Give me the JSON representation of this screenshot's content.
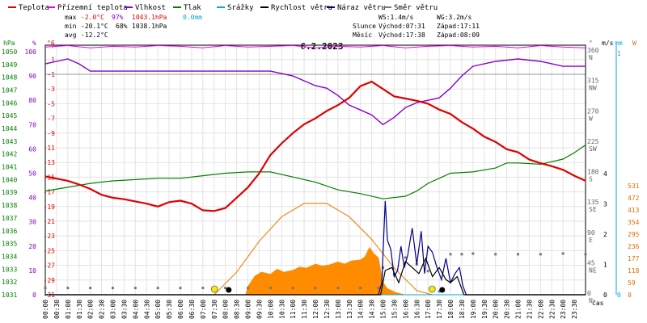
{
  "chart_data": {
    "type": "line",
    "title": "6.2.2023",
    "x_unit_label": "čas",
    "legend": [
      {
        "label": "Teplota",
        "color": "#e00000"
      },
      {
        "label": "Přízemní teplota",
        "color": "#ee00ee"
      },
      {
        "label": "Vlhkost",
        "color": "#8800cc"
      },
      {
        "label": "Tlak",
        "color": "#008000"
      },
      {
        "label": "Srážky",
        "color": "#00aadd"
      },
      {
        "label": "Rychlost větru",
        "color": "#000000"
      },
      {
        "label": "Náraz větru",
        "color": "#000088"
      },
      {
        "label": "Směr větru",
        "color": "#777777"
      }
    ],
    "stats": {
      "max": {
        "label": "max",
        "temp": "-2.0°C",
        "hum": "97%",
        "press": "1043.1hPa",
        "rain": "0.0mm"
      },
      "min": {
        "label": "min",
        "temp": "-20.1°C",
        "hum": "68%",
        "press": "1038.1hPa"
      },
      "avg": {
        "label": "avg",
        "temp": "-12.2°C"
      },
      "ws": "WS:1.4m/s",
      "wg": "WG:3.2m/s",
      "sun": {
        "label": "Slunce",
        "rise": "Východ:07:31",
        "set": "Západ:17:11"
      },
      "moon": {
        "label": "Měsíc",
        "rise": "Východ:17:38",
        "set": "Západ:08:09"
      }
    },
    "axes": {
      "hpa": {
        "unit": "hPa",
        "ticks": [
          "1031",
          "1032",
          "1033",
          "1034",
          "1035",
          "1036",
          "1037",
          "1038",
          "1039",
          "1040",
          "1041",
          "1042",
          "1043",
          "1044",
          "1045",
          "1046",
          "1047",
          "1048",
          "1049",
          "1050"
        ]
      },
      "pct": {
        "unit": "%",
        "ticks": [
          "0",
          "10",
          "20",
          "30",
          "40",
          "50",
          "60",
          "70",
          "80",
          "90",
          "100"
        ]
      },
      "temp": {
        "unit": "°C",
        "ticks": [
          "-31",
          "-29",
          "-27",
          "-25",
          "-23",
          "-21",
          "-19",
          "-17",
          "-15",
          "-13",
          "-11",
          "-9",
          "-7",
          "-5",
          "-3",
          "-1",
          "1",
          "3"
        ]
      },
      "deg": {
        "unit": "°",
        "ticks": [
          "0",
          "45",
          "90",
          "135",
          "180",
          "225",
          "270",
          "315",
          "360"
        ],
        "dirs": [
          "N",
          "NE",
          "E",
          "SE",
          "S",
          "SW",
          "W",
          "NW",
          "N"
        ]
      },
      "ms": {
        "unit": "m/s",
        "ticks": [
          "0",
          "1",
          "2",
          "3",
          "4"
        ]
      },
      "mm": {
        "unit": "mm",
        "ticks": [
          "0",
          "1"
        ]
      },
      "w": {
        "unit": "W",
        "ticks": [
          "0",
          "59",
          "118",
          "177",
          "236",
          "295",
          "354",
          "413",
          "472",
          "531"
        ]
      },
      "time": [
        "00:00",
        "00:30",
        "01:00",
        "01:30",
        "02:00",
        "02:30",
        "03:00",
        "03:30",
        "04:00",
        "04:30",
        "05:00",
        "05:30",
        "06:00",
        "06:30",
        "07:00",
        "07:30",
        "08:00",
        "08:30",
        "09:00",
        "09:30",
        "10:00",
        "10:30",
        "11:00",
        "11:30",
        "12:00",
        "12:30",
        "13:00",
        "13:30",
        "14:00",
        "14:30",
        "15:00",
        "15:30",
        "16:00",
        "16:30",
        "17:00",
        "17:30",
        "18:00",
        "18:30",
        "19:00",
        "19:30",
        "20:00",
        "20:30",
        "21:00",
        "21:30",
        "22:00",
        "22:30",
        "23:00",
        "23:30"
      ]
    },
    "series": {
      "temperature_c": {
        "x": [
          0,
          0.5,
          1,
          1.5,
          2,
          2.5,
          3,
          3.5,
          4,
          4.5,
          5,
          5.5,
          6,
          6.5,
          7,
          7.5,
          8,
          8.5,
          9,
          9.5,
          10,
          10.5,
          11,
          11.5,
          12,
          12.5,
          13,
          13.5,
          14,
          14.5,
          15,
          15.5,
          16,
          16.5,
          17,
          17.5,
          18,
          18.5,
          19,
          19.5,
          20,
          20.5,
          21,
          21.5,
          22,
          22.5,
          23,
          23.5,
          24
        ],
        "y": [
          -14.9,
          -15.2,
          -15.5,
          -16,
          -16.6,
          -17.4,
          -17.8,
          -18,
          -18.3,
          -18.6,
          -19,
          -18.4,
          -18.2,
          -18.6,
          -19.5,
          -19.6,
          -19.2,
          -17.8,
          -16.4,
          -14.5,
          -12,
          -10.4,
          -9,
          -7.8,
          -7,
          -6,
          -5.2,
          -4.2,
          -2.6,
          -2,
          -3,
          -4,
          -4.3,
          -4.6,
          -5,
          -5.8,
          -6.4,
          -7.5,
          -8.4,
          -9.5,
          -10.2,
          -11.2,
          -11.6,
          -12.6,
          -13.1,
          -13.5,
          -14,
          -14.8,
          -15.5
        ]
      },
      "ground_temp_c": {
        "x": [
          0,
          1,
          2,
          3,
          4,
          5,
          6,
          7,
          8,
          9,
          10,
          11,
          12,
          13,
          14,
          15,
          16,
          17,
          18,
          19,
          20,
          21,
          22,
          23,
          24
        ],
        "y": [
          2.7,
          2.9,
          2.6,
          2.8,
          2.7,
          2.9,
          2.8,
          2.6,
          2.9,
          2.7,
          2.8,
          2.9,
          2.6,
          2.8,
          2.7,
          2.9,
          2.6,
          2.8,
          2.9,
          2.7,
          2.8,
          2.6,
          2.9,
          2.7,
          2.6
        ]
      },
      "humidity_pct": {
        "x": [
          0,
          0.5,
          1,
          1.5,
          2,
          3,
          4,
          5,
          6,
          7,
          8,
          9,
          10,
          10.5,
          11,
          11.5,
          12,
          12.5,
          13,
          13.5,
          14,
          14.5,
          15,
          15.5,
          16,
          16.5,
          17,
          17.5,
          18,
          18.5,
          19,
          20,
          21,
          22,
          23,
          24
        ],
        "y": [
          95,
          96,
          97,
          95,
          92,
          92,
          92,
          92,
          92,
          92,
          92,
          92,
          92,
          91,
          90,
          88,
          86,
          85,
          82,
          78,
          76,
          74,
          70,
          73,
          77,
          79,
          80,
          81,
          85,
          90,
          94,
          96,
          97,
          96,
          94,
          94
        ]
      },
      "pressure_hpa": {
        "x": [
          0,
          1,
          2,
          3,
          4,
          5,
          6,
          7,
          8,
          9,
          10,
          11,
          12,
          13,
          14,
          15,
          16,
          16.5,
          17,
          17.5,
          18,
          19,
          20,
          20.5,
          21,
          22,
          23,
          23.5,
          24
        ],
        "y": [
          1039.1,
          1039.4,
          1039.7,
          1039.9,
          1040,
          1040.1,
          1040.1,
          1040.3,
          1040.5,
          1040.6,
          1040.6,
          1040.2,
          1039.8,
          1039.2,
          1038.9,
          1038.5,
          1038.7,
          1039.1,
          1039.7,
          1040.1,
          1040.5,
          1040.6,
          1040.9,
          1041.3,
          1041.3,
          1041.2,
          1041.6,
          1042.1,
          1042.7
        ]
      },
      "rain_mm": {
        "x": [
          0,
          24
        ],
        "y": [
          0,
          0
        ]
      },
      "wind_speed_ms": {
        "x": [
          0,
          14.9,
          15.1,
          15.4,
          15.7,
          16,
          16.3,
          16.6,
          16.9,
          17.2,
          17.5,
          17.8,
          18,
          18.3,
          18.6,
          24
        ],
        "y": [
          0,
          0,
          0.8,
          0.9,
          0.4,
          1.1,
          0.9,
          0.7,
          1.2,
          0.6,
          0.9,
          0.5,
          0.4,
          0.6,
          0,
          0
        ]
      },
      "wind_gust_ms": {
        "x": [
          0,
          14.8,
          14.95,
          15.1,
          15.2,
          15.35,
          15.5,
          15.65,
          15.8,
          15.95,
          16.1,
          16.3,
          16.5,
          16.7,
          16.85,
          17,
          17.2,
          17.4,
          17.6,
          17.8,
          18,
          18.2,
          18.4,
          18.55,
          18.7,
          24
        ],
        "y": [
          0,
          0,
          0.4,
          3.1,
          1.8,
          1.5,
          0.6,
          0.8,
          1.6,
          0.9,
          1.3,
          2.2,
          1.0,
          2.1,
          0.7,
          1.6,
          1.4,
          0.9,
          0.5,
          1.2,
          0.4,
          0.7,
          0.9,
          0.3,
          0,
          0
        ]
      },
      "wind_dir_deg": {
        "x": [
          0,
          1,
          2,
          3,
          4,
          5,
          6,
          7,
          8,
          9,
          10,
          11,
          12,
          13,
          14,
          14.8,
          15,
          15.5,
          16,
          16.5,
          17,
          17.5,
          18,
          18.5,
          19,
          20,
          21,
          22,
          23,
          24
        ],
        "y": [
          10,
          10,
          10,
          10,
          10,
          10,
          10,
          10,
          10,
          10,
          10,
          10,
          10,
          10,
          10,
          10,
          40,
          30,
          55,
          45,
          35,
          5,
          60,
          60,
          61,
          60,
          60,
          60,
          61,
          60
        ]
      },
      "solar_w": {
        "x": [
          8.9,
          9,
          9.3,
          9.6,
          10,
          10.3,
          10.6,
          11,
          11.3,
          11.6,
          12,
          12.3,
          12.6,
          13,
          13.3,
          13.6,
          14,
          14.2,
          14.4,
          14.6,
          14.8,
          15,
          15.2,
          15.6,
          16
        ],
        "y": [
          0,
          40,
          90,
          110,
          100,
          125,
          110,
          120,
          135,
          130,
          150,
          140,
          145,
          160,
          150,
          165,
          170,
          185,
          230,
          200,
          180,
          60,
          30,
          10,
          0
        ]
      },
      "solar_theoretical_w": {
        "x": [
          7.5,
          8.5,
          9.5,
          10.5,
          11.5,
          12.5,
          13.5,
          14.5,
          15.5,
          16.5,
          17.2
        ],
        "y": [
          0,
          110,
          260,
          380,
          445,
          445,
          380,
          270,
          130,
          20,
          0
        ]
      }
    }
  }
}
